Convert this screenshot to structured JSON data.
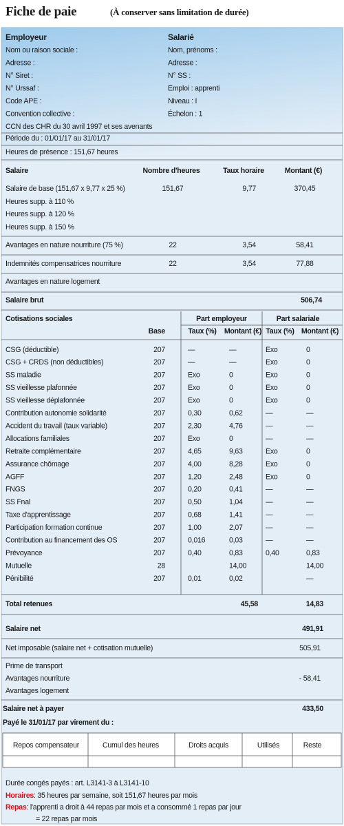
{
  "header": {
    "title": "Fiche de paie",
    "subtitle": "(À conserver sans limitation de durée)"
  },
  "employer": {
    "heading": "Employeur",
    "lines": [
      "Nom ou raison sociale :",
      "Adresse :",
      "N° Siret :",
      "N° Urssaf :",
      "Code APE :",
      "Convention collective :",
      "CCN des CHR du 30 avril 1997 et ses avenants"
    ]
  },
  "employee": {
    "heading": "Salarié",
    "lines": [
      "Nom, prénoms :",
      "Adresse :",
      "N° SS :",
      "Emploi : apprenti",
      "Niveau : I",
      "Échelon : 1"
    ]
  },
  "period": "Période du : 01/01/17 au 31/01/17",
  "presence": "Heures de présence : 151,67 heures",
  "salary": {
    "headers": [
      "Salaire",
      "Nombre d'heures",
      "Taux horaire",
      "Montant (€)"
    ],
    "rows": [
      [
        "Salaire de base (151,67 x 9,77 x 25 %)",
        "151,67",
        "9,77",
        "370,45"
      ],
      [
        "Heures supp. à 110 %",
        null,
        null,
        null
      ],
      [
        "Heures supp. à 120 %",
        null,
        null,
        null
      ],
      [
        "Heures supp. à 150 %",
        null,
        null,
        null
      ],
      [
        "Avantages en nature nourriture (75 %)",
        "22",
        "3,54",
        "58,41"
      ],
      [
        "Indemnités compensatrices nourriture",
        "22",
        "3,54",
        "77,88"
      ],
      [
        "Avantages en nature logement",
        null,
        null,
        null
      ]
    ],
    "gross": {
      "label": "Salaire brut",
      "amount": "506,74"
    }
  },
  "contributions": {
    "title": "Cotisations sociales",
    "employer_part": "Part employeur",
    "employee_part": "Part salariale",
    "columns": [
      "Base",
      "Taux (%)",
      "Montant (€)",
      "Taux (%)",
      "Montant (€)"
    ],
    "rows": [
      [
        "CSG (déductible)",
        "207",
        "—",
        "—",
        "Exo",
        "0"
      ],
      [
        "CSG + CRDS (non déductibles)",
        "207",
        "—",
        "—",
        "Exo",
        "0"
      ],
      [
        "SS maladie",
        "207",
        "Exo",
        "0",
        "Exo",
        "0"
      ],
      [
        "SS vieillesse plafonnée",
        "207",
        "Exo",
        "0",
        "Exo",
        "0"
      ],
      [
        "SS vieillesse déplafonnée",
        "207",
        "Exo",
        "0",
        "Exo",
        "0"
      ],
      [
        "Contribution autonomie solidarité",
        "207",
        "0,30",
        "0,62",
        "—",
        "—"
      ],
      [
        "Accident du travail (taux variable)",
        "207",
        "2,30",
        "4,76",
        "—",
        "—"
      ],
      [
        "Allocations familiales",
        "207",
        "Exo",
        "0",
        "—",
        "—"
      ],
      [
        "Retraite complémentaire",
        "207",
        "4,65",
        "9,63",
        "Exo",
        "0"
      ],
      [
        "Assurance chômage",
        "207",
        "4,00",
        "8,28",
        "Exo",
        "0"
      ],
      [
        "AGFF",
        "207",
        "1,20",
        "2,48",
        "Exo",
        "0"
      ],
      [
        "FNGS",
        "207",
        "0,20",
        "0,41",
        "—",
        "—"
      ],
      [
        "SS Fnal",
        "207",
        "0,50",
        "1,04",
        "—",
        "—"
      ],
      [
        "Taxe d'apprentissage",
        "207",
        "0,68",
        "1,41",
        "—",
        "—"
      ],
      [
        "Participation formation continue",
        "207",
        "1,00",
        "2,07",
        "—",
        "—"
      ],
      [
        "Contribution au financement des OS",
        "207",
        "0,016",
        "0,03",
        "—",
        "—"
      ],
      [
        "Prévoyance",
        "207",
        "0,40",
        "0,83",
        "0,40",
        "0,83"
      ],
      [
        "Mutuelle",
        "28",
        null,
        "14,00",
        null,
        "14,00"
      ],
      [
        "Pénibilité",
        "207",
        "0,01",
        "0,02",
        null,
        "—"
      ]
    ],
    "total": {
      "label": "Total retenues",
      "employer": "45,58",
      "employee": "14,83"
    }
  },
  "net": {
    "label": "Salaire net",
    "amount": "491,91"
  },
  "taxable": {
    "label": "Net imposable (salaire net + cotisation mutuelle)",
    "amount": "505,91"
  },
  "adjustments": [
    [
      "Prime de transport",
      null
    ],
    [
      "Avantages nourriture",
      "- 58,41"
    ],
    [
      "Avantages logement",
      null
    ]
  ],
  "net_to_pay": {
    "label": "Salaire net à payer",
    "amount": "433,50"
  },
  "payment": "Payé le 31/01/17  par virement du :",
  "leave_table": {
    "headers": [
      "Repos compensateur",
      "Cumul des heures",
      "Droits acquis",
      "Utilisés",
      "Reste"
    ]
  },
  "footer": {
    "leave": "Durée congés payés : art. L3141-3 à L3141-10",
    "hours": {
      "label": "Horaires",
      "text": " : 35 heures par semaine, soit 151,67 heures par mois"
    },
    "meals": {
      "label": "Repas",
      "text": " : l'apprenti a droit à 44 repas par mois et a consommé 1 repas par jour",
      "continuation": "= 22 repas par mois"
    }
  }
}
